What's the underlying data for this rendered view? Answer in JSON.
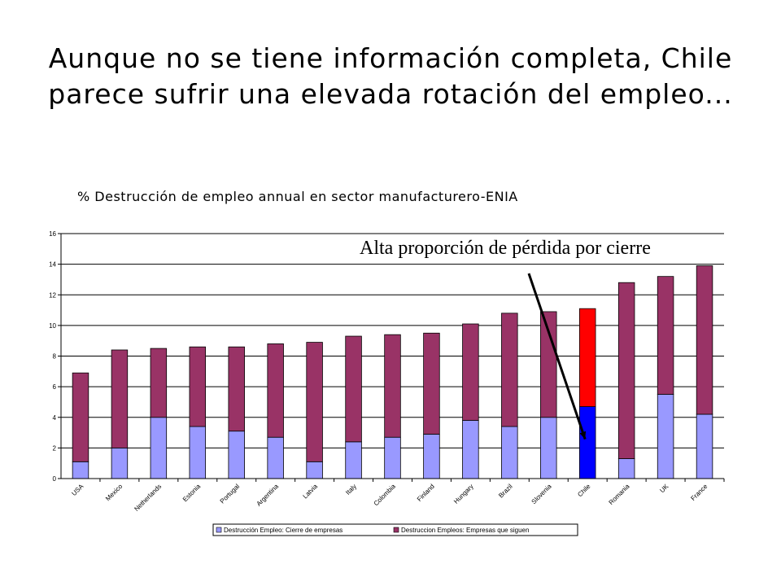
{
  "slide": {
    "title": "Aunque no se tiene información completa, Chile parece sufrir una elevada rotación del empleo...",
    "subtitle": "% Destrucción de empleo annual en sector manufacturero-ENIA"
  },
  "annotation": {
    "text": "Alta proporción de pérdida por cierre",
    "points_to": "Chile"
  },
  "colors": {
    "cierre": "#9999ff",
    "siguen": "#993366",
    "chile_cierre": "#0000ff",
    "chile_siguen": "#ff0000"
  },
  "chart_data": {
    "type": "bar",
    "stacked": true,
    "categories": [
      "USA",
      "Mexico",
      "Netherlands",
      "Estonia",
      "Portugal",
      "Argentina",
      "Latvia",
      "Italy",
      "Colombia",
      "Finland",
      "Hungary",
      "Brazil",
      "Slovenia",
      "Chile",
      "Romania",
      "UK",
      "France"
    ],
    "series": [
      {
        "name": "Destrucción Empleo: Cierre de empresas",
        "values": [
          1.1,
          2.0,
          4.0,
          3.4,
          3.1,
          2.7,
          1.1,
          2.4,
          2.7,
          2.9,
          3.8,
          3.4,
          4.0,
          4.7,
          1.3,
          5.5,
          4.2
        ]
      },
      {
        "name": "Destruccion Empleos: Empresas que siguen",
        "values": [
          5.8,
          6.4,
          4.5,
          5.2,
          5.5,
          6.1,
          7.8,
          6.9,
          6.7,
          6.6,
          6.3,
          7.4,
          6.9,
          6.4,
          11.5,
          7.7,
          9.7
        ]
      }
    ],
    "highlight_category": "Chile",
    "ylim": [
      0,
      16
    ],
    "yticks": [
      0,
      2,
      4,
      6,
      8,
      10,
      12,
      14,
      16
    ],
    "grid": true,
    "legend_position": "bottom"
  }
}
